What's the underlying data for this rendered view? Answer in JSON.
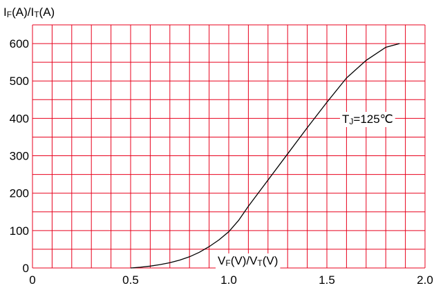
{
  "chart_data": {
    "type": "line",
    "title": "",
    "ylabel_parts": [
      {
        "text": "I",
        "sub": false
      },
      {
        "text": "F",
        "sub": true
      },
      {
        "text": "(A)/I",
        "sub": false
      },
      {
        "text": "T",
        "sub": true
      },
      {
        "text": "(A)",
        "sub": false
      }
    ],
    "xlabel_parts": [
      {
        "text": "V",
        "sub": false
      },
      {
        "text": "F",
        "sub": true
      },
      {
        "text": "(V)/V",
        "sub": false
      },
      {
        "text": "T",
        "sub": true
      },
      {
        "text": "(V)",
        "sub": false
      }
    ],
    "annotation_parts": [
      {
        "text": "T",
        "sub": false
      },
      {
        "text": "J",
        "sub": true
      },
      {
        "text": "=125℃",
        "sub": false
      }
    ],
    "xlim": [
      0,
      2.0
    ],
    "ylim": [
      0,
      650
    ],
    "x_ticks": [
      0,
      0.5,
      1.0,
      1.5,
      2.0
    ],
    "x_tick_labels": [
      "0",
      "0.5",
      "1.0",
      "1.5",
      "2.0"
    ],
    "y_ticks": [
      0,
      100,
      200,
      300,
      400,
      500,
      600
    ],
    "y_tick_labels": [
      "0",
      "100",
      "200",
      "300",
      "400",
      "500",
      "600"
    ],
    "x_grid_step": 0.1,
    "y_grid_step": 50,
    "grid": true,
    "grid_color": "#e8001c",
    "line_color": "#000000",
    "series": [
      {
        "x": [
          0.5,
          0.55,
          0.6,
          0.65,
          0.7,
          0.75,
          0.8,
          0.85,
          0.9,
          0.95,
          1.0,
          1.05,
          1.1,
          1.2,
          1.3,
          1.4,
          1.5,
          1.6,
          1.7,
          1.8,
          1.87
        ],
        "y": [
          0,
          2,
          5,
          9,
          14,
          21,
          30,
          42,
          57,
          75,
          97,
          127,
          165,
          235,
          305,
          375,
          443,
          508,
          555,
          590,
          600
        ]
      }
    ]
  }
}
